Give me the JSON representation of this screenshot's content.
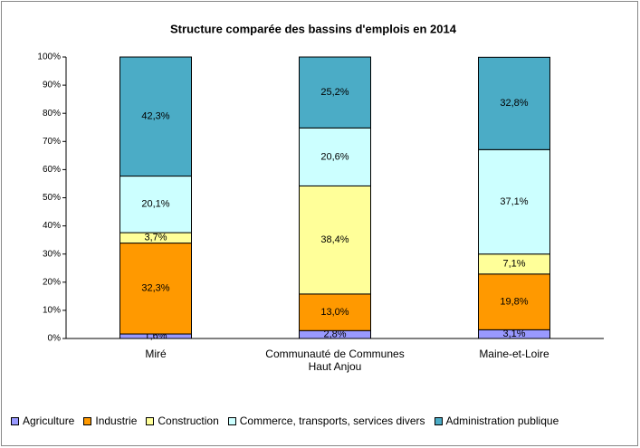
{
  "chart_data": {
    "type": "stacked_bar",
    "title": "Structure comparée des bassins d'emplois en 2014",
    "categories": [
      "Miré",
      "Communauté de Communes Haut Anjou",
      "Maine-et-Loire"
    ],
    "series": [
      {
        "name": "Agriculture",
        "color": "#9999ff",
        "values": [
          1.6,
          2.8,
          3.1
        ],
        "value_labels": [
          "1,6%",
          "2,8%",
          "3,1%"
        ]
      },
      {
        "name": "Industrie",
        "color": "#ff9900",
        "values": [
          32.3,
          13.0,
          19.8
        ],
        "value_labels": [
          "32,3%",
          "13,0%",
          "19,8%"
        ]
      },
      {
        "name": "Construction",
        "color": "#ffff99",
        "values": [
          3.7,
          38.4,
          7.1
        ],
        "value_labels": [
          "3,7%",
          "38,4%",
          "7,1%"
        ]
      },
      {
        "name": "Commerce, transports, services divers",
        "color": "#ccffff",
        "values": [
          20.1,
          20.6,
          37.1
        ],
        "value_labels": [
          "20,1%",
          "20,6%",
          "37,1%"
        ]
      },
      {
        "name": "Administration publique",
        "color": "#4bacc6",
        "values": [
          42.3,
          25.2,
          32.8
        ],
        "value_labels": [
          "42,3%",
          "25,2%",
          "32,8%"
        ]
      }
    ],
    "ylim": [
      0,
      100
    ],
    "yticks": [
      {
        "value": 0,
        "label": "0%"
      },
      {
        "value": 10,
        "label": "10%"
      },
      {
        "value": 20,
        "label": "20%"
      },
      {
        "value": 30,
        "label": "30%"
      },
      {
        "value": 40,
        "label": "40%"
      },
      {
        "value": 50,
        "label": "50%"
      },
      {
        "value": 60,
        "label": "60%"
      },
      {
        "value": 70,
        "label": "70%"
      },
      {
        "value": 80,
        "label": "80%"
      },
      {
        "value": 90,
        "label": "90%"
      },
      {
        "value": 100,
        "label": "100%"
      }
    ],
    "grid": false,
    "legend": "bottom"
  }
}
